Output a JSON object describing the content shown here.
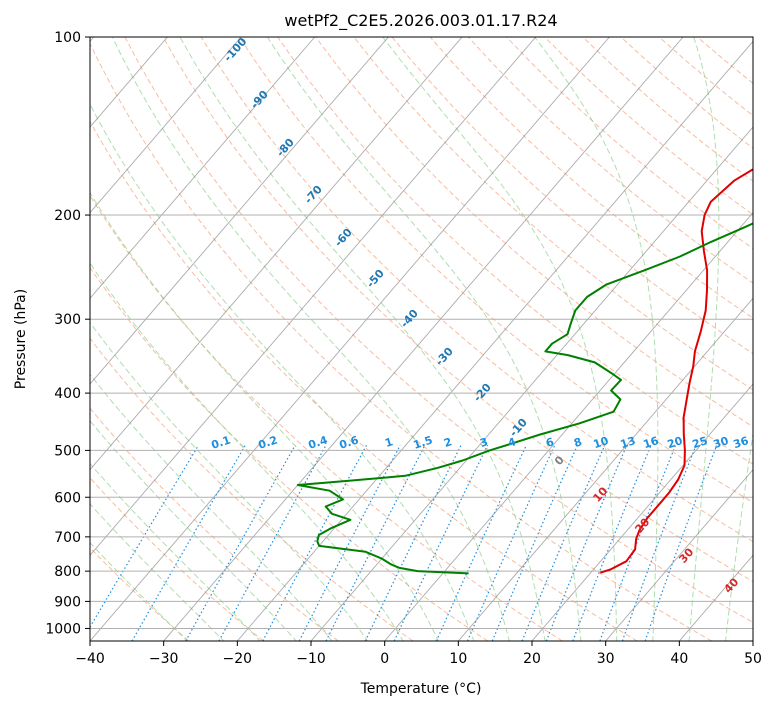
{
  "chart_data": {
    "type": "line",
    "subtype": "skew-t log-p diagram",
    "title": "wetPf2_C2E5.2026.003.01.17.R24",
    "xlabel": "Temperature (°C)",
    "ylabel": "Pressure (hPa)",
    "xlim": [
      -40,
      50
    ],
    "ylim": [
      1050,
      100
    ],
    "y_scale": "log",
    "grid": true,
    "x_ticks": [
      -40,
      -30,
      -20,
      -10,
      0,
      10,
      20,
      30,
      40,
      50
    ],
    "y_ticks": [
      100,
      200,
      300,
      400,
      500,
      600,
      700,
      800,
      900,
      1000
    ],
    "colors": {
      "temperature": "#e00000",
      "dewpoint": "#008000",
      "isotherm": "#888888",
      "dry_adiabat": "#f4a582",
      "moist_adiabat": "#8fcf8f",
      "mixing_ratio": "#1f8ee0",
      "contour_label_blue": "#1f77b4",
      "contour_label_red": "#d62728",
      "contour_label_gray": "#808080"
    },
    "series": [
      {
        "key": "temperature",
        "points": [
          [
            21.3,
            805
          ],
          [
            22.3,
            795
          ],
          [
            23.5,
            770
          ],
          [
            23.3,
            735
          ],
          [
            22.2,
            705
          ],
          [
            21.6,
            680
          ],
          [
            21.3,
            650
          ],
          [
            21.3,
            620
          ],
          [
            21.3,
            590
          ],
          [
            21.0,
            560
          ],
          [
            20.2,
            530
          ],
          [
            18.5,
            500
          ],
          [
            16.5,
            470
          ],
          [
            14.5,
            440
          ],
          [
            12.8,
            410
          ],
          [
            11.3,
            385
          ],
          [
            9.8,
            360
          ],
          [
            8.3,
            340
          ],
          [
            6.8,
            315
          ],
          [
            5.0,
            290
          ],
          [
            2.8,
            268
          ],
          [
            0.5,
            248
          ],
          [
            -2.2,
            230
          ],
          [
            -4.8,
            213
          ],
          [
            -6.3,
            200
          ],
          [
            -7.0,
            190
          ],
          [
            -6.3,
            175
          ],
          [
            -3.8,
            160
          ],
          [
            -0.5,
            147
          ],
          [
            3.5,
            136
          ],
          [
            5.0,
            130
          ],
          [
            4.8,
            120
          ],
          [
            4.5,
            110
          ],
          [
            4.3,
            100
          ]
        ]
      },
      {
        "key": "dewpoint",
        "points": [
          [
            3.5,
            807
          ],
          [
            -3.7,
            800
          ],
          [
            -6.5,
            790
          ],
          [
            -8.0,
            780
          ],
          [
            -10.0,
            762
          ],
          [
            -13.0,
            742
          ],
          [
            -20.0,
            725
          ],
          [
            -20.8,
            712
          ],
          [
            -21.3,
            695
          ],
          [
            -20.5,
            678
          ],
          [
            -18.8,
            655
          ],
          [
            -22.0,
            640
          ],
          [
            -23.7,
            622
          ],
          [
            -22.2,
            605
          ],
          [
            -25.0,
            585
          ],
          [
            -30.0,
            572
          ],
          [
            -23.0,
            562
          ],
          [
            -16.5,
            552
          ],
          [
            -13.0,
            535
          ],
          [
            -10.5,
            520
          ],
          [
            -8.0,
            500
          ],
          [
            -5.5,
            485
          ],
          [
            -3.0,
            470
          ],
          [
            1.0,
            450
          ],
          [
            4.3,
            430
          ],
          [
            3.8,
            410
          ],
          [
            1.5,
            396
          ],
          [
            1.6,
            380
          ],
          [
            -0.5,
            370
          ],
          [
            -4.0,
            355
          ],
          [
            -8.5,
            345
          ],
          [
            -12.0,
            340
          ],
          [
            -12.0,
            330
          ],
          [
            -11.0,
            318
          ],
          [
            -11.8,
            305
          ],
          [
            -12.7,
            290
          ],
          [
            -12.7,
            275
          ],
          [
            -11.5,
            262
          ],
          [
            -8.0,
            248
          ],
          [
            -4.8,
            235
          ],
          [
            -2.3,
            222
          ],
          [
            0.5,
            210
          ],
          [
            3.0,
            199
          ],
          [
            5.0,
            190
          ],
          [
            6.0,
            182
          ],
          [
            6.0,
            175
          ],
          [
            5.0,
            165
          ],
          [
            4.0,
            155
          ],
          [
            4.0,
            145
          ],
          [
            5.0,
            138
          ],
          [
            6.8,
            130
          ],
          [
            9.5,
            122
          ],
          [
            13.5,
            112
          ],
          [
            17.5,
            100
          ]
        ]
      }
    ],
    "contour_labels": {
      "moist_adiabats": [
        "-100",
        "-90",
        "-80",
        "-70",
        "-60",
        "-50",
        "-40",
        "-30",
        "-20",
        "-10",
        "0",
        "10",
        "20",
        "30",
        "40"
      ],
      "mixing_ratios": [
        "0.1",
        "0.2",
        "0.4",
        "0.6",
        "1",
        "1.5",
        "2",
        "3",
        "4",
        "6",
        "8",
        "10",
        "13",
        "16",
        "20",
        "25",
        "30",
        "36"
      ]
    }
  }
}
